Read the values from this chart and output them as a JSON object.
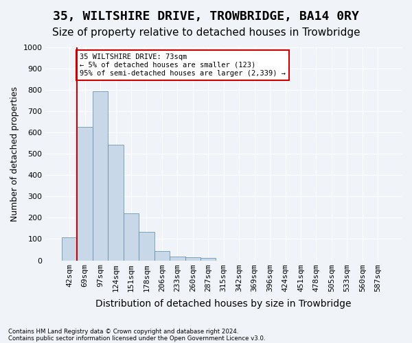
{
  "title": "35, WILTSHIRE DRIVE, TROWBRIDGE, BA14 0RY",
  "subtitle": "Size of property relative to detached houses in Trowbridge",
  "xlabel": "Distribution of detached houses by size in Trowbridge",
  "ylabel": "Number of detached properties",
  "footer_line1": "Contains HM Land Registry data © Crown copyright and database right 2024.",
  "footer_line2": "Contains public sector information licensed under the Open Government Licence v3.0.",
  "bin_labels": [
    "42sqm",
    "69sqm",
    "97sqm",
    "124sqm",
    "151sqm",
    "178sqm",
    "206sqm",
    "233sqm",
    "260sqm",
    "287sqm",
    "315sqm",
    "342sqm",
    "369sqm",
    "396sqm",
    "424sqm",
    "451sqm",
    "478sqm",
    "505sqm",
    "533sqm",
    "560sqm",
    "587sqm"
  ],
  "bar_values": [
    107,
    627,
    793,
    543,
    220,
    135,
    43,
    17,
    13,
    10,
    0,
    0,
    0,
    0,
    0,
    0,
    0,
    0,
    0,
    0,
    0
  ],
  "bar_color": "#c8d8e8",
  "bar_edge_color": "#5588aa",
  "ylim": [
    0,
    1000
  ],
  "yticks": [
    0,
    100,
    200,
    300,
    400,
    500,
    600,
    700,
    800,
    900,
    1000
  ],
  "red_line_x": 0.5,
  "red_line_color": "#cc0000",
  "annotation_text": "35 WILTSHIRE DRIVE: 73sqm\n← 5% of detached houses are smaller (123)\n95% of semi-detached houses are larger (2,339) →",
  "annotation_box_color": "#ffffff",
  "annotation_box_edge_color": "#cc0000",
  "background_color": "#f0f4f8",
  "grid_color": "#ffffff",
  "title_fontsize": 13,
  "subtitle_fontsize": 11,
  "axis_fontsize": 9,
  "tick_fontsize": 8
}
